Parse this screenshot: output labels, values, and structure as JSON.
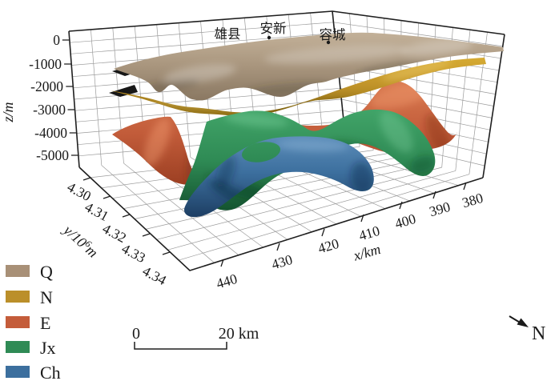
{
  "axes": {
    "z": {
      "label": "z/m",
      "ticks": [
        "0",
        "-1000",
        "-2000",
        "-3000",
        "-4000",
        "-5000"
      ]
    },
    "y": {
      "label_prefix": "y/10",
      "label_sup": "6",
      "label_suffix": "m",
      "ticks": [
        "4.30",
        "4.31",
        "4.32",
        "4.33",
        "4.34"
      ]
    },
    "x": {
      "label": "x/km",
      "ticks": [
        "440",
        "430",
        "420",
        "410",
        "400",
        "390",
        "380"
      ]
    }
  },
  "annotations": {
    "cities": [
      {
        "name": "雄县",
        "marker_dot_visible": false
      },
      {
        "name": "安新",
        "marker_dot_visible": true
      },
      {
        "name": "容城",
        "marker_dot_visible": true
      }
    ]
  },
  "legend": {
    "items": [
      {
        "label": "Q",
        "color": "#a89077"
      },
      {
        "label": "N",
        "color": "#bb8f2a"
      },
      {
        "label": "E",
        "color": "#c45c3a"
      },
      {
        "label": "Jx",
        "color": "#2f8b55"
      },
      {
        "label": "Ch",
        "color": "#3c6f9e"
      }
    ]
  },
  "scale_bar": {
    "start_label": "0",
    "end_label": "20 km"
  },
  "north_arrow": {
    "label": "N"
  },
  "chart_data": {
    "type": "surface3d",
    "title": "",
    "x": {
      "label": "x/km",
      "range": [
        380,
        440
      ],
      "ticks": [
        440,
        430,
        420,
        410,
        400,
        390,
        380
      ]
    },
    "y": {
      "label": "y/10^6 m",
      "range": [
        4.3,
        4.34
      ],
      "ticks": [
        4.3,
        4.31,
        4.32,
        4.33,
        4.34
      ]
    },
    "z": {
      "label": "z/m",
      "range": [
        -5500,
        400
      ],
      "ticks": [
        0,
        -1000,
        -2000,
        -3000,
        -4000,
        -5000
      ]
    },
    "grid": true,
    "legend_position": "bottom-left",
    "surfaces": [
      {
        "name": "Q",
        "color": "#a89077",
        "approx_depth_range_m": [
          -1200,
          0
        ],
        "shape": "gently undulating sheet near top of box"
      },
      {
        "name": "N",
        "color": "#bb8f2a",
        "approx_depth_range_m": [
          -2400,
          -1200
        ],
        "shape": "thin undulating band just below Q, rising to back-right"
      },
      {
        "name": "E",
        "color": "#c45c3a",
        "approx_depth_range_m": [
          -4800,
          -1800
        ],
        "shape": "strongly folded surface with deep valleys at front-left and a high fold at right"
      },
      {
        "name": "Jx",
        "color": "#2f8b55",
        "approx_depth_range_m": [
          -5200,
          -2800
        ],
        "shape": "folded arching surface in the center, legs descending to front"
      },
      {
        "name": "Ch",
        "color": "#3c6f9e",
        "approx_depth_range_m": [
          -5700,
          -3500
        ],
        "shape": "deepest arched surface with an elliptical hole (window) near center"
      }
    ],
    "annotations": [
      {
        "name": "雄县",
        "position": "top of model"
      },
      {
        "name": "安新",
        "position": "top of model, dotted marker"
      },
      {
        "name": "容城",
        "position": "top of model, dotted marker"
      }
    ],
    "scale_bar_km": 20
  }
}
